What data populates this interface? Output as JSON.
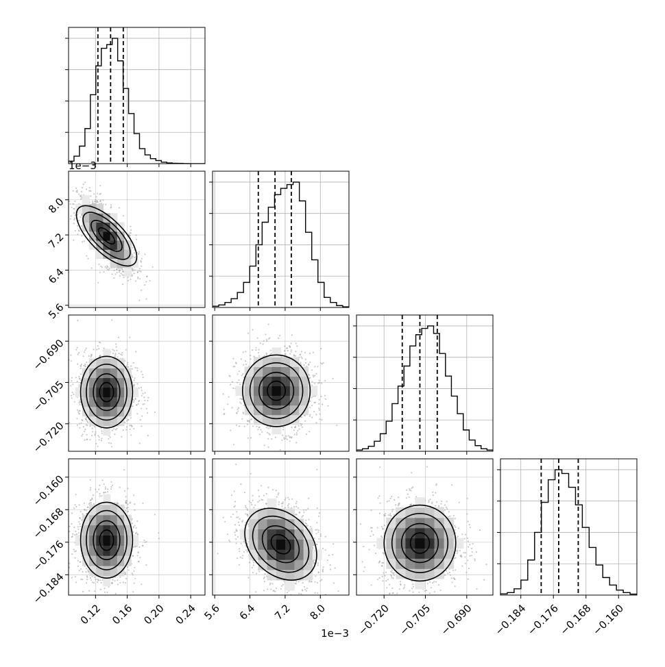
{
  "chart_data": {
    "type": "corner",
    "variables": [
      {
        "range": [
          0.086,
          0.258
        ],
        "ticks": [
          0.12,
          0.16,
          0.2,
          0.24
        ],
        "tick_labels": [
          "0.12",
          "0.16",
          "0.20",
          "0.24"
        ],
        "quantiles": [
          0.123,
          0.139,
          0.155
        ],
        "offset_label": "",
        "hist": [
          0.02,
          0.06,
          0.14,
          0.28,
          0.55,
          0.78,
          0.92,
          0.95,
          1.0,
          0.82,
          0.6,
          0.4,
          0.24,
          0.12,
          0.07,
          0.04,
          0.025,
          0.012,
          0.006,
          0.003,
          0.002,
          0.001,
          0.0,
          0.0,
          0.0
        ]
      },
      {
        "range": [
          0.00555,
          0.00865
        ],
        "ticks": [
          0.0056,
          0.0064,
          0.0072,
          0.008
        ],
        "tick_labels": [
          "5.6",
          "6.4",
          "7.2",
          "8.0"
        ],
        "quantiles": [
          0.00659,
          0.00697,
          0.00734
        ],
        "offset_label": "1e−3",
        "hist": [
          0.01,
          0.02,
          0.04,
          0.07,
          0.12,
          0.2,
          0.33,
          0.5,
          0.68,
          0.8,
          0.9,
          0.95,
          0.98,
          1.0,
          0.85,
          0.6,
          0.38,
          0.2,
          0.08,
          0.04,
          0.015,
          0.005
        ]
      },
      {
        "range": [
          -0.73,
          -0.6805
        ],
        "ticks": [
          -0.72,
          -0.705,
          -0.69
        ],
        "tick_labels": [
          "−0.720",
          "−0.705",
          "−0.690"
        ],
        "quantiles": [
          -0.7134,
          -0.707,
          -0.7007
        ],
        "offset_label": "",
        "hist": [
          0.01,
          0.02,
          0.04,
          0.08,
          0.14,
          0.24,
          0.38,
          0.52,
          0.68,
          0.84,
          0.93,
          0.98,
          1.0,
          0.94,
          0.78,
          0.6,
          0.44,
          0.3,
          0.17,
          0.09,
          0.045,
          0.02,
          0.01
        ]
      },
      {
        "range": [
          -0.189,
          -0.1555
        ],
        "ticks": [
          -0.184,
          -0.176,
          -0.168,
          -0.16
        ],
        "tick_labels": [
          "−0.184",
          "−0.176",
          "−0.168",
          "−0.160"
        ],
        "quantiles": [
          -0.179,
          -0.1747,
          -0.1699
        ],
        "offset_label": "",
        "hist": [
          0.01,
          0.02,
          0.05,
          0.12,
          0.28,
          0.5,
          0.74,
          0.92,
          1.0,
          0.97,
          0.86,
          0.72,
          0.54,
          0.38,
          0.24,
          0.14,
          0.08,
          0.04,
          0.02,
          0.008
        ]
      }
    ],
    "joint_centers": {
      "1-0": [
        0.134,
        0.00718
      ],
      "2-0": [
        0.134,
        -0.7085
      ],
      "2-1": [
        0.007,
        -0.708
      ],
      "3-0": [
        0.134,
        -0.1755
      ],
      "3-1": [
        0.0071,
        -0.1765
      ],
      "3-2": [
        -0.707,
        -0.1762
      ]
    },
    "correlations": {
      "1-0": -0.7,
      "2-0": 0.0,
      "2-1": 0.0,
      "3-0": 0.0,
      "3-1": -0.3,
      "3-2": 0.0
    },
    "bottom_offset_label": "1e−3",
    "left_offset_label": "1e−3",
    "grid": true,
    "legend": null
  },
  "colors": {
    "axis": "#000000",
    "grid": "#b0b0b0",
    "points": "#9a9a9a",
    "density": "#000000"
  }
}
